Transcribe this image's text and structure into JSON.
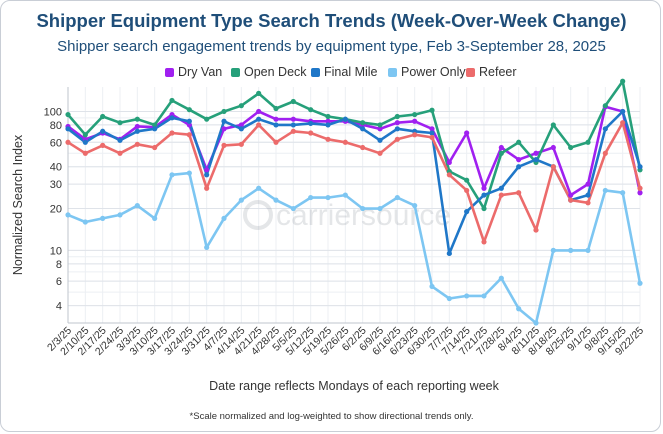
{
  "header": {
    "title": "Shipper Equipment Type Search Trends (Week-Over-Week Change)",
    "subtitle": "Shipper search engagement trends by equipment type, Feb 3-September 28, 2025"
  },
  "footnote": "*Scale normalized and log-weighted to show directional trends only.",
  "watermark": "carriersource",
  "chart_data": {
    "type": "line",
    "xlabel": "Date range reflects Mondays of each reporting week",
    "ylabel": "Normalized Search Index",
    "yscale": "log",
    "ylim": [
      3,
      150
    ],
    "y_ticks": [
      4,
      6,
      8,
      10,
      20,
      30,
      40,
      60,
      80,
      100
    ],
    "grid": true,
    "legend_position": "top",
    "categories": [
      "2/3/25",
      "2/10/25",
      "2/17/25",
      "2/24/25",
      "3/3/25",
      "3/10/25",
      "3/17/25",
      "3/24/25",
      "3/31/25",
      "4/7/25",
      "4/14/25",
      "4/21/25",
      "4/28/25",
      "5/5/25",
      "5/12/25",
      "5/19/25",
      "5/26/25",
      "6/2/25",
      "6/9/25",
      "6/16/25",
      "6/23/25",
      "6/30/25",
      "7/7/25",
      "7/14/25",
      "7/21/25",
      "7/28/25",
      "8/4/25",
      "8/11/25",
      "8/18/25",
      "8/25/25",
      "9/1/25",
      "9/8/25",
      "9/15/25",
      "9/22/25"
    ],
    "series": [
      {
        "name": "Dry Van",
        "color": "#a020f0",
        "values": [
          78,
          63,
          70,
          63,
          78,
          77,
          95,
          80,
          38,
          75,
          80,
          100,
          88,
          88,
          85,
          85,
          85,
          80,
          75,
          83,
          85,
          75,
          43,
          70,
          28,
          55,
          45,
          50,
          55,
          25,
          30,
          108,
          100,
          26
        ]
      },
      {
        "name": "Open Deck",
        "color": "#26a07a",
        "values": [
          95,
          68,
          92,
          83,
          88,
          80,
          120,
          103,
          88,
          100,
          110,
          135,
          105,
          118,
          103,
          92,
          88,
          83,
          80,
          92,
          95,
          102,
          37,
          32,
          20,
          50,
          60,
          43,
          80,
          55,
          60,
          110,
          165,
          38
        ]
      },
      {
        "name": "Final Mile",
        "color": "#1f77c8",
        "values": [
          75,
          60,
          72,
          62,
          72,
          75,
          90,
          85,
          35,
          85,
          75,
          88,
          80,
          80,
          82,
          80,
          88,
          75,
          62,
          75,
          72,
          70,
          9.5,
          19,
          25,
          28,
          40,
          45,
          40,
          23,
          25,
          75,
          100,
          40
        ]
      },
      {
        "name": "Power Only",
        "color": "#7dc6f2",
        "values": [
          18,
          16,
          17,
          18,
          21,
          17,
          35,
          36,
          10.5,
          17,
          23,
          28,
          23,
          20,
          24,
          24,
          25,
          20,
          20,
          24,
          21,
          5.5,
          4.5,
          4.7,
          4.7,
          6.3,
          3.8,
          3.0,
          10,
          10,
          10,
          27,
          26,
          5.8
        ]
      },
      {
        "name": "Refeer",
        "color": "#ec6b6b",
        "values": [
          60,
          50,
          57,
          50,
          58,
          55,
          70,
          68,
          28,
          57,
          58,
          80,
          60,
          72,
          70,
          63,
          60,
          55,
          50,
          63,
          68,
          65,
          35,
          27,
          11.5,
          25,
          26,
          14,
          40,
          23,
          22,
          50,
          83,
          28
        ]
      }
    ]
  }
}
